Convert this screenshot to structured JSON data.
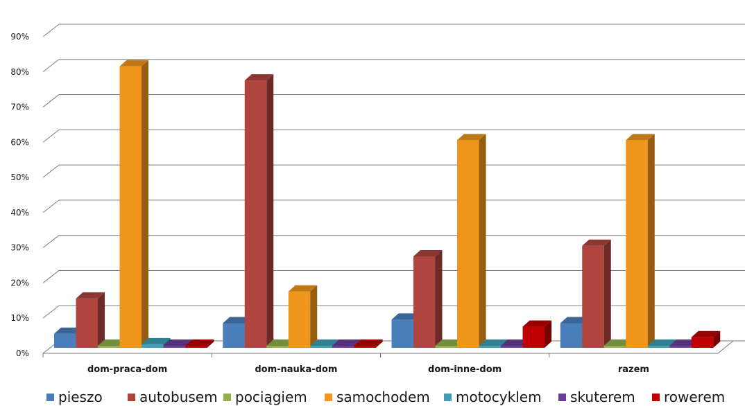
{
  "chart_data": {
    "type": "bar",
    "categories": [
      "dom-praca-dom",
      "dom-nauka-dom",
      "dom-inne-dom",
      "razem"
    ],
    "yticks": [
      "0%",
      "10%",
      "20%",
      "30%",
      "40%",
      "50%",
      "60%",
      "70%",
      "80%",
      "90%"
    ],
    "ylim": [
      0,
      90
    ],
    "grid": true,
    "legend_position": "bottom",
    "series": [
      {
        "name": "pieszo",
        "color": "#4a7ebb",
        "values": [
          4,
          7,
          8,
          7
        ]
      },
      {
        "name": "autobusem",
        "color": "#b0453f",
        "values": [
          14,
          76,
          26,
          29
        ]
      },
      {
        "name": "pociągiem",
        "color": "#8fb04a",
        "values": [
          0,
          0,
          0,
          0
        ]
      },
      {
        "name": "samochodem",
        "color": "#f0961a",
        "values": [
          80,
          16,
          59,
          59
        ]
      },
      {
        "name": "motocyklem",
        "color": "#3f9fb6",
        "values": [
          1,
          0,
          0,
          0
        ]
      },
      {
        "name": "skuterem",
        "color": "#6a3f9a",
        "values": [
          0,
          0,
          0,
          0
        ]
      },
      {
        "name": "rowerem",
        "color": "#c00000",
        "values": [
          0,
          0,
          6,
          3
        ]
      }
    ]
  }
}
